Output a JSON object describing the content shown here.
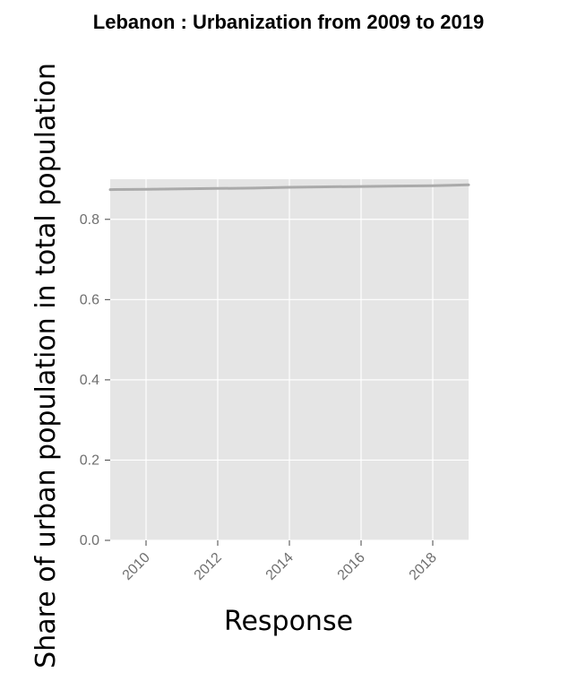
{
  "chart_data": {
    "type": "line",
    "title": "Lebanon : Urbanization from 2009 to 2019",
    "xlabel": "Response",
    "ylabel": "Share of urban population in total population",
    "xlim": [
      2009,
      2019
    ],
    "ylim": [
      0,
      0.9
    ],
    "x_ticks": [
      2010,
      2012,
      2014,
      2016,
      2018
    ],
    "x_tick_labels": [
      "2010",
      "2012",
      "2014",
      "2016",
      "2018"
    ],
    "y_ticks": [
      0,
      0.2,
      0.4,
      0.6,
      0.8
    ],
    "y_tick_labels": [
      "0.0",
      "0.2",
      "0.4",
      "0.6",
      "0.8"
    ],
    "grid": true,
    "legend": "none",
    "colors": {
      "plot_background": "#e5e5e5",
      "grid": "#ffffff",
      "line": "#aaaaaa",
      "tick_text": "#6f6f6f"
    },
    "series": [
      {
        "x": [
          2009,
          2010,
          2011,
          2012,
          2013,
          2014,
          2015,
          2016,
          2017,
          2018,
          2019
        ],
        "values": [
          0.874,
          0.875,
          0.876,
          0.877,
          0.878,
          0.88,
          0.881,
          0.882,
          0.883,
          0.884,
          0.886
        ]
      }
    ]
  }
}
